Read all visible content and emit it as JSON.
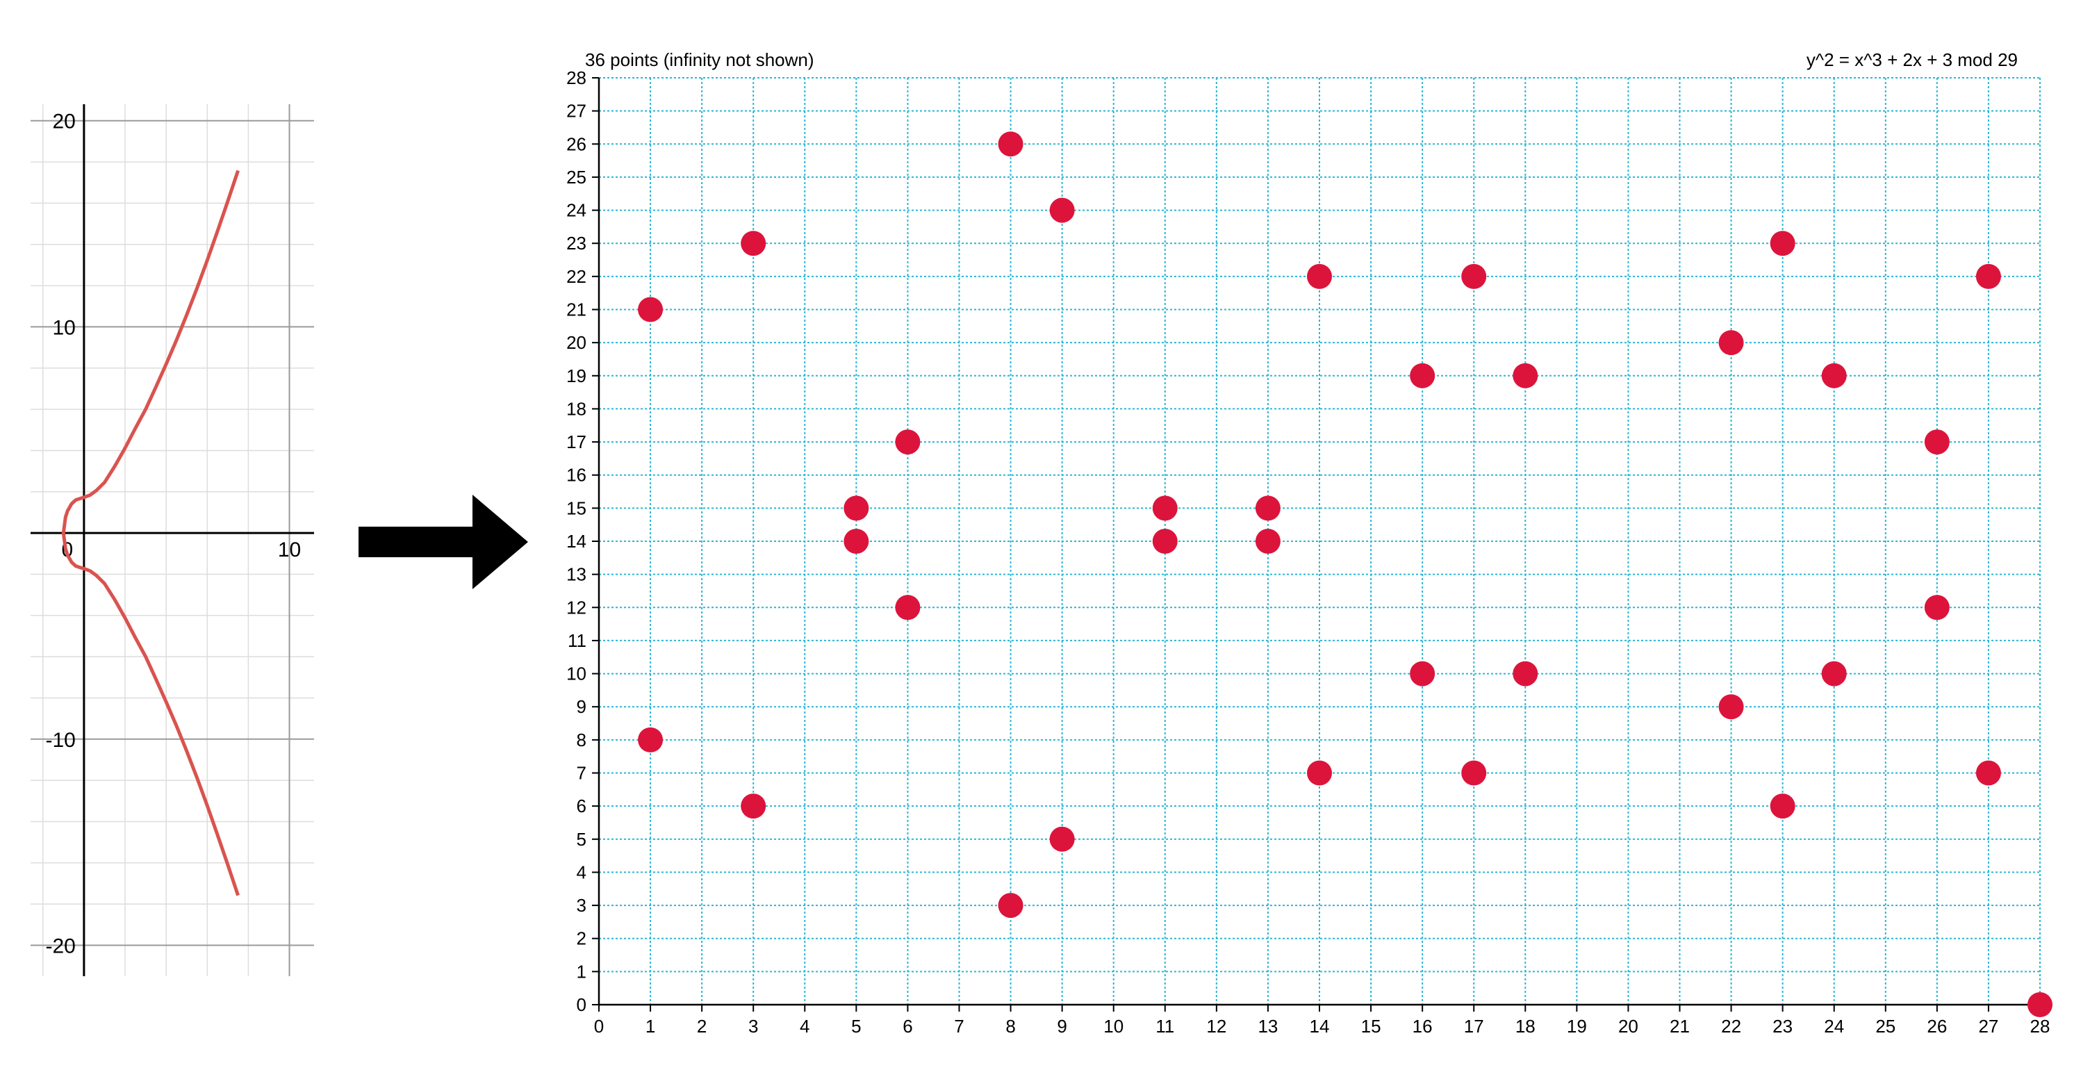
{
  "chart_data": [
    {
      "type": "line",
      "description_curve": "real curve plot",
      "x_ticks": [
        0,
        10
      ],
      "y_ticks": [
        20,
        10,
        -10,
        -20
      ],
      "x_tick_labels": [
        "0",
        "10"
      ],
      "y_tick_labels": [
        "20",
        "10",
        "-10",
        "-20"
      ],
      "xlim": [
        -2.6,
        11.2
      ],
      "ylim": [
        -21.5,
        20.8
      ],
      "grid": true,
      "curve_color": "#d9534f",
      "series": [
        {
          "x": [
            -1.0,
            -0.9,
            -0.8,
            -0.6,
            -0.4,
            -0.2,
            0.0,
            0.3,
            0.6,
            1.0,
            1.5,
            2.0,
            2.5,
            3.0,
            3.5,
            4.0,
            4.5,
            5.0,
            5.5,
            6.0,
            6.5,
            7.0,
            7.5
          ],
          "y": [
            0.0,
            0.77,
            1.07,
            1.42,
            1.6,
            1.67,
            1.73,
            1.84,
            2.06,
            2.45,
            3.24,
            4.12,
            5.08,
            6.0,
            7.08,
            8.19,
            9.35,
            10.58,
            11.87,
            13.23,
            14.64,
            16.09,
            17.58
          ]
        }
      ],
      "symmetric_about_x_axis": true
    },
    {
      "type": "scatter",
      "title": "36 points (infinity not shown)",
      "subtitle": "y^2 = x^3 + 2x + 3 mod 29",
      "xlim": [
        0,
        28
      ],
      "ylim": [
        0,
        28
      ],
      "grid": true,
      "grid_color": "#29b6d6",
      "point_color": "#dc143c",
      "points": [
        [
          1,
          21
        ],
        [
          1,
          8
        ],
        [
          3,
          23
        ],
        [
          3,
          6
        ],
        [
          5,
          15
        ],
        [
          5,
          14
        ],
        [
          6,
          17
        ],
        [
          6,
          12
        ],
        [
          8,
          26
        ],
        [
          8,
          3
        ],
        [
          9,
          24
        ],
        [
          9,
          5
        ],
        [
          11,
          15
        ],
        [
          11,
          14
        ],
        [
          13,
          15
        ],
        [
          13,
          14
        ],
        [
          14,
          22
        ],
        [
          14,
          7
        ],
        [
          16,
          19
        ],
        [
          16,
          10
        ],
        [
          17,
          22
        ],
        [
          17,
          7
        ],
        [
          18,
          19
        ],
        [
          18,
          10
        ],
        [
          22,
          20
        ],
        [
          22,
          9
        ],
        [
          23,
          23
        ],
        [
          23,
          6
        ],
        [
          24,
          19
        ],
        [
          24,
          10
        ],
        [
          26,
          17
        ],
        [
          26,
          12
        ],
        [
          27,
          22
        ],
        [
          27,
          7
        ],
        [
          28,
          0
        ]
      ]
    }
  ],
  "arrow": {
    "color": "#000000"
  }
}
